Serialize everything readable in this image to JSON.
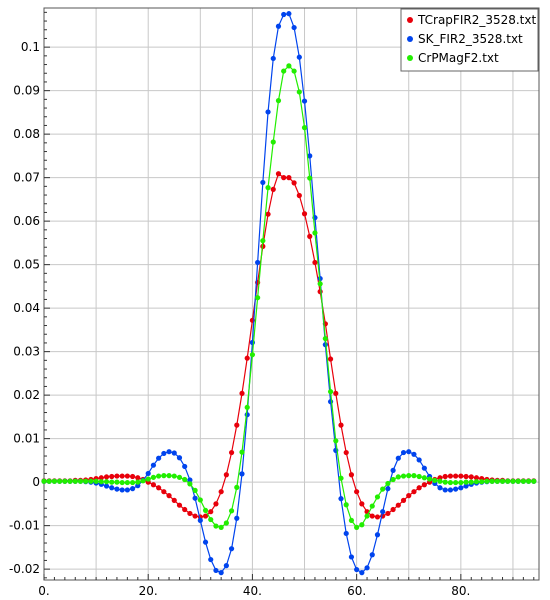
{
  "chart_data": {
    "type": "line",
    "title": "",
    "xlabel": "",
    "ylabel": "",
    "xlim": [
      0,
      95
    ],
    "ylim": [
      -0.0225,
      0.109
    ],
    "grid": true,
    "legend_position": "top-right",
    "x_ticks": [
      {
        "value": 0,
        "label": "0."
      },
      {
        "value": 20,
        "label": "20."
      },
      {
        "value": 40,
        "label": "40."
      },
      {
        "value": 60,
        "label": "60."
      },
      {
        "value": 80,
        "label": "80."
      }
    ],
    "y_ticks": [
      {
        "value": -0.02,
        "label": "-0.02"
      },
      {
        "value": -0.01,
        "label": "-0.01"
      },
      {
        "value": 0,
        "label": "0"
      },
      {
        "value": 0.01,
        "label": "0.01"
      },
      {
        "value": 0.02,
        "label": "0.02"
      },
      {
        "value": 0.03,
        "label": "0.03"
      },
      {
        "value": 0.04,
        "label": "0.04"
      },
      {
        "value": 0.05,
        "label": "0.05"
      },
      {
        "value": 0.06,
        "label": "0.06"
      },
      {
        "value": 0.07,
        "label": "0.07"
      },
      {
        "value": 0.08,
        "label": "0.08"
      },
      {
        "value": 0.09,
        "label": "0.09"
      },
      {
        "value": 0.1,
        "label": "0.1"
      }
    ],
    "x": [
      0,
      1,
      2,
      3,
      4,
      5,
      6,
      7,
      8,
      9,
      10,
      11,
      12,
      13,
      14,
      15,
      16,
      17,
      18,
      19,
      20,
      21,
      22,
      23,
      24,
      25,
      26,
      27,
      28,
      29,
      30,
      31,
      32,
      33,
      34,
      35,
      36,
      37,
      38,
      39,
      40,
      41,
      42,
      43,
      44,
      45,
      46,
      47,
      48,
      49,
      50,
      51,
      52,
      53,
      54,
      55,
      56,
      57,
      58,
      59,
      60,
      61,
      62,
      63,
      64,
      65,
      66,
      67,
      68,
      69,
      70,
      71,
      72,
      73,
      74,
      75,
      76,
      77,
      78,
      79,
      80,
      81,
      82,
      83,
      84,
      85,
      86,
      87,
      88,
      89,
      90,
      91,
      92,
      93,
      94
    ],
    "series": [
      {
        "name": "TCrapFIR2_3528.txt",
        "color": "#e8000b",
        "values": [
          0.0003,
          0.0003,
          0.0003,
          0.0003,
          0.0003,
          0.0003,
          0.0004,
          0.0004,
          0.0005,
          0.0006,
          0.0008,
          0.001,
          0.0012,
          0.0013,
          0.0014,
          0.0014,
          0.0014,
          0.0013,
          0.001,
          0.0006,
          0.0,
          -0.0006,
          -0.0013,
          -0.0022,
          -0.0031,
          -0.0042,
          -0.0053,
          -0.0063,
          -0.0072,
          -0.0078,
          -0.008,
          -0.0078,
          -0.0068,
          -0.005,
          -0.0022,
          0.0017,
          0.0068,
          0.0131,
          0.0204,
          0.0285,
          0.0372,
          0.0459,
          0.0542,
          0.0616,
          0.0673,
          0.0709,
          0.07,
          0.07,
          0.0688,
          0.0659,
          0.0617,
          0.0565,
          0.0505,
          0.0438,
          0.0364,
          0.0283,
          0.0204,
          0.0131,
          0.0068,
          0.0017,
          -0.0022,
          -0.005,
          -0.0068,
          -0.0078,
          -0.008,
          -0.0078,
          -0.0072,
          -0.0063,
          -0.0053,
          -0.0042,
          -0.0031,
          -0.0022,
          -0.0013,
          -0.0006,
          0.0,
          0.0006,
          0.001,
          0.0013,
          0.0014,
          0.0014,
          0.0014,
          0.0013,
          0.0012,
          0.001,
          0.0008,
          0.0006,
          0.0005,
          0.0004,
          0.0004,
          0.0003,
          0.0003,
          0.0003,
          0.0003,
          0.0003,
          0.0003
        ]
      },
      {
        "name": "SK_FIR2_3528.txt",
        "color": "#0044ee",
        "values": [
          0.0002,
          0.0002,
          0.0002,
          0.0002,
          0.0002,
          0.0002,
          0.0002,
          0.0002,
          0.0001,
          0.0,
          -0.0002,
          -0.0005,
          -0.0009,
          -0.0013,
          -0.0016,
          -0.0018,
          -0.0018,
          -0.0015,
          -0.0008,
          0.0004,
          0.002,
          0.0039,
          0.0055,
          0.0066,
          0.007,
          0.0067,
          0.0056,
          0.0036,
          0.0005,
          -0.0037,
          -0.0088,
          -0.0138,
          -0.0178,
          -0.0203,
          -0.0208,
          -0.0192,
          -0.0153,
          -0.0083,
          0.0019,
          0.0155,
          0.0321,
          0.0505,
          0.0689,
          0.0851,
          0.0974,
          0.1048,
          0.1075,
          0.1077,
          0.1045,
          0.0977,
          0.0876,
          0.075,
          0.0608,
          0.0468,
          0.0316,
          0.0185,
          0.0073,
          -0.0038,
          -0.0118,
          -0.0172,
          -0.0201,
          -0.0208,
          -0.0197,
          -0.0167,
          -0.0121,
          -0.0068,
          -0.0015,
          0.0027,
          0.0055,
          0.0068,
          0.007,
          0.0064,
          0.0051,
          0.0032,
          0.0013,
          -0.0003,
          -0.0013,
          -0.0018,
          -0.0018,
          -0.0016,
          -0.0013,
          -0.0009,
          -0.0005,
          -0.0002,
          0.0,
          0.0001,
          0.0002,
          0.0002,
          0.0002,
          0.0002,
          0.0002,
          0.0002,
          0.0002,
          0.0002,
          0.0002
        ]
      },
      {
        "name": "CrPMagF2.txt",
        "color": "#22ee00",
        "values": [
          0.0002,
          0.0002,
          0.0002,
          0.0002,
          0.0002,
          0.0002,
          0.0002,
          0.0002,
          0.0002,
          0.0002,
          0.0002,
          0.0001,
          0.0001,
          0.0,
          0.0,
          -0.0001,
          -0.0001,
          -0.0001,
          0.0,
          0.0003,
          0.0007,
          0.0011,
          0.0014,
          0.0015,
          0.0015,
          0.0014,
          0.0011,
          0.0006,
          -0.0004,
          -0.0019,
          -0.0041,
          -0.0065,
          -0.0086,
          -0.0101,
          -0.0104,
          -0.0094,
          -0.0066,
          -0.0012,
          0.0069,
          0.0172,
          0.0293,
          0.0424,
          0.0555,
          0.0677,
          0.0782,
          0.0877,
          0.0945,
          0.0957,
          0.0945,
          0.0897,
          0.0815,
          0.0699,
          0.0573,
          0.0456,
          0.033,
          0.0208,
          0.0095,
          0.0009,
          -0.0052,
          -0.0088,
          -0.0104,
          -0.0098,
          -0.0078,
          -0.0055,
          -0.0034,
          -0.0016,
          -0.0003,
          0.0006,
          0.0012,
          0.0014,
          0.0015,
          0.0015,
          0.0013,
          0.001,
          0.0007,
          0.0004,
          0.0002,
          0.0,
          -0.0001,
          -0.0001,
          -0.0001,
          0.0,
          0.0,
          0.0001,
          0.0001,
          0.0002,
          0.0002,
          0.0002,
          0.0002,
          0.0002,
          0.0002,
          0.0002,
          0.0002,
          0.0002,
          0.0002
        ]
      }
    ]
  }
}
